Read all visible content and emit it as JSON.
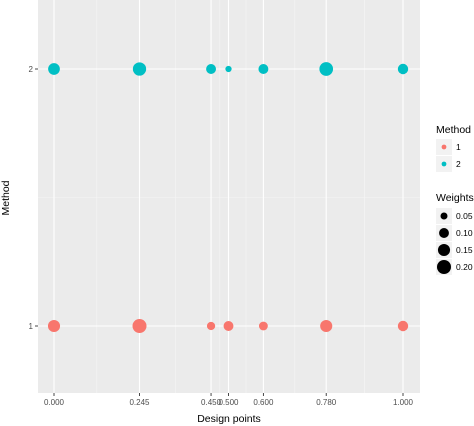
{
  "chart_data": {
    "type": "scatter",
    "xlabel": "Design points",
    "ylabel": "Method",
    "x_ticks": [
      "0.000",
      "0.245",
      "0.450",
      "0.500",
      "0.600",
      "0.780",
      "1.000"
    ],
    "x_tick_values": [
      0,
      0.245,
      0.45,
      0.5,
      0.6,
      0.78,
      1.0
    ],
    "y_categories": [
      "1",
      "2"
    ],
    "xlim": [
      -0.05,
      1.05
    ],
    "grid": true,
    "legend_position": "right",
    "colors": {
      "1": "#F8766D",
      "2": "#00BFC4"
    },
    "series": [
      {
        "name": "1",
        "points": [
          {
            "x": 0.0,
            "weight": 0.15
          },
          {
            "x": 0.245,
            "weight": 0.2
          },
          {
            "x": 0.45,
            "weight": 0.07
          },
          {
            "x": 0.5,
            "weight": 0.1
          },
          {
            "x": 0.6,
            "weight": 0.08
          },
          {
            "x": 0.78,
            "weight": 0.15
          },
          {
            "x": 1.0,
            "weight": 0.11
          }
        ]
      },
      {
        "name": "2",
        "points": [
          {
            "x": 0.0,
            "weight": 0.14
          },
          {
            "x": 0.245,
            "weight": 0.18
          },
          {
            "x": 0.45,
            "weight": 0.1
          },
          {
            "x": 0.5,
            "weight": 0.04
          },
          {
            "x": 0.6,
            "weight": 0.1
          },
          {
            "x": 0.78,
            "weight": 0.19
          },
          {
            "x": 1.0,
            "weight": 0.11
          }
        ]
      }
    ],
    "legend_color": {
      "title": "Method",
      "items": [
        "1",
        "2"
      ]
    },
    "legend_size": {
      "title": "Weights",
      "items": [
        0.05,
        0.1,
        0.15,
        0.2
      ],
      "labels": [
        "0.05",
        "0.10",
        "0.15",
        "0.20"
      ]
    }
  }
}
